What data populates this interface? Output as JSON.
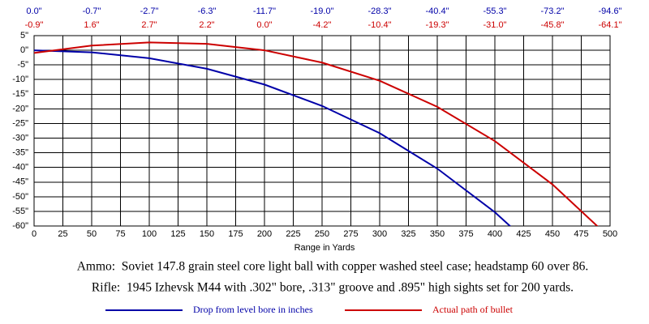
{
  "chart_data": {
    "type": "line",
    "x_label": "Range in Yards",
    "notes": [
      "Ammo:  Soviet 147.8 grain steel core light ball with copper washed steel case; headstamp 60 over 86.",
      "Rifle:  1945 Izhevsk M44 with .302\" bore, .313\" groove and .895\" high sights set for 200 yards."
    ],
    "x": [
      0,
      50,
      100,
      150,
      200,
      250,
      300,
      350,
      400,
      450,
      500
    ],
    "series": [
      {
        "name": "Drop from level bore in inches",
        "color": "#0000a8",
        "values": [
          0.0,
          -0.7,
          -2.7,
          -6.3,
          -11.7,
          -19.0,
          -28.3,
          -40.4,
          -55.3,
          -73.2,
          -94.6
        ],
        "value_labels": [
          "0.0\"",
          "-0.7\"",
          "-2.7\"",
          "-6.3\"",
          "-11.7\"",
          "-19.0\"",
          "-28.3\"",
          "-40.4\"",
          "-55.3\"",
          "-73.2\"",
          "-94.6\""
        ]
      },
      {
        "name": "Actual path of bullet",
        "color": "#cc0000",
        "values": [
          -0.9,
          1.6,
          2.7,
          2.2,
          0.0,
          -4.2,
          -10.4,
          -19.3,
          -31.0,
          -45.8,
          -64.1
        ],
        "value_labels": [
          "-0.9\"",
          "1.6\"",
          "2.7\"",
          "2.2\"",
          "0.0\"",
          "-4.2\"",
          "-10.4\"",
          "-19.3\"",
          "-31.0\"",
          "-45.8\"",
          "-64.1\""
        ]
      }
    ],
    "xlim": [
      0,
      500
    ],
    "xticks": [
      0,
      25,
      50,
      75,
      100,
      125,
      150,
      175,
      200,
      225,
      250,
      275,
      300,
      325,
      350,
      375,
      400,
      425,
      450,
      475,
      500
    ],
    "ylim": [
      -60,
      5
    ],
    "yticks": [
      {
        "value": 5,
        "label": "5\""
      },
      {
        "value": 0,
        "label": "0\""
      },
      {
        "value": -5,
        "label": "-5\""
      },
      {
        "value": -10,
        "label": "-10\""
      },
      {
        "value": -15,
        "label": "-15\""
      },
      {
        "value": -20,
        "label": "-20\""
      },
      {
        "value": -25,
        "label": "-25\""
      },
      {
        "value": -30,
        "label": "-30\""
      },
      {
        "value": -35,
        "label": "-35\""
      },
      {
        "value": -40,
        "label": "-40\""
      },
      {
        "value": -45,
        "label": "-45\""
      },
      {
        "value": -50,
        "label": "-50\""
      },
      {
        "value": -55,
        "label": "-55\""
      },
      {
        "value": -60,
        "label": "-60\""
      }
    ],
    "grid": true,
    "legend": "bottom"
  }
}
